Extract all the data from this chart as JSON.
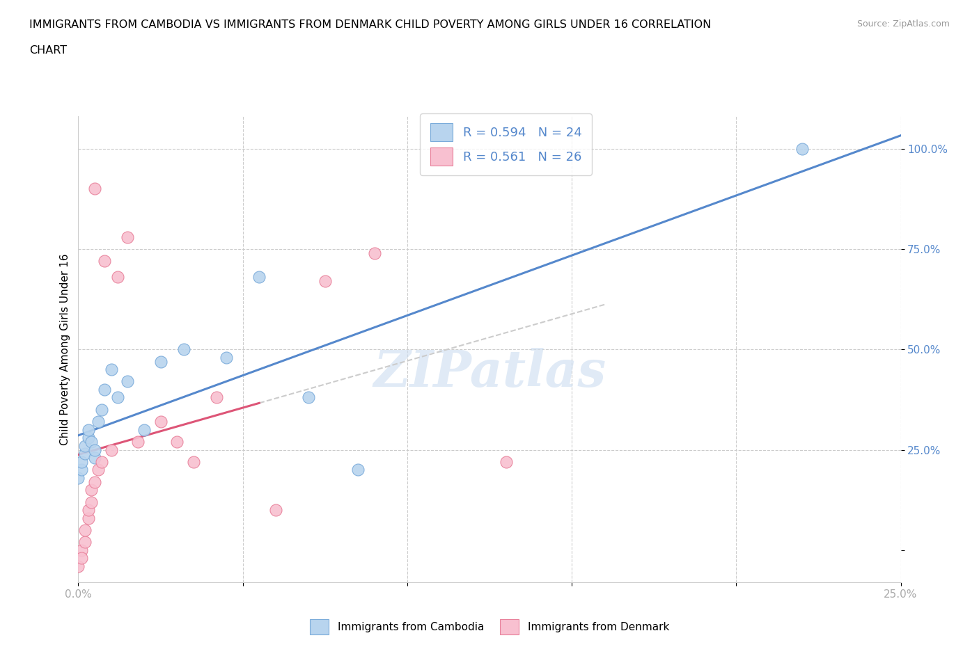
{
  "title_line1": "IMMIGRANTS FROM CAMBODIA VS IMMIGRANTS FROM DENMARK CHILD POVERTY AMONG GIRLS UNDER 16 CORRELATION",
  "title_line2": "CHART",
  "source": "Source: ZipAtlas.com",
  "ylabel": "Child Poverty Among Girls Under 16",
  "xlim": [
    0.0,
    0.25
  ],
  "ylim": [
    -0.08,
    1.08
  ],
  "x_ticks": [
    0.0,
    0.05,
    0.1,
    0.15,
    0.2,
    0.25
  ],
  "x_tick_labels": [
    "0.0%",
    "",
    "",
    "",
    "",
    "25.0%"
  ],
  "y_ticks": [
    0.0,
    0.25,
    0.5,
    0.75,
    1.0
  ],
  "y_tick_labels": [
    "",
    "25.0%",
    "50.0%",
    "75.0%",
    "100.0%"
  ],
  "cambodia_fill": "#b8d4ee",
  "cambodia_edge": "#7aabda",
  "denmark_fill": "#f8c0d0",
  "denmark_edge": "#e8809a",
  "trendline_cambodia": "#5588cc",
  "trendline_denmark": "#dd5577",
  "trendline_denmark_dashed": "#ddaaaa",
  "watermark": "ZIPatlas",
  "legend_R_cambodia": "R = 0.594",
  "legend_N_cambodia": "N = 24",
  "legend_R_denmark": "R = 0.561",
  "legend_N_denmark": "N = 26",
  "camb_x": [
    0.0,
    0.001,
    0.001,
    0.002,
    0.002,
    0.003,
    0.003,
    0.004,
    0.005,
    0.005,
    0.006,
    0.007,
    0.008,
    0.01,
    0.012,
    0.015,
    0.02,
    0.025,
    0.032,
    0.045,
    0.055,
    0.07,
    0.085,
    0.22
  ],
  "camb_y": [
    0.18,
    0.2,
    0.22,
    0.24,
    0.26,
    0.28,
    0.3,
    0.27,
    0.23,
    0.25,
    0.32,
    0.35,
    0.4,
    0.45,
    0.38,
    0.42,
    0.3,
    0.47,
    0.5,
    0.48,
    0.68,
    0.38,
    0.2,
    1.0
  ],
  "den_x": [
    0.0,
    0.001,
    0.001,
    0.002,
    0.002,
    0.003,
    0.003,
    0.004,
    0.004,
    0.005,
    0.005,
    0.006,
    0.007,
    0.008,
    0.01,
    0.012,
    0.015,
    0.018,
    0.025,
    0.03,
    0.035,
    0.042,
    0.06,
    0.075,
    0.09,
    0.13
  ],
  "den_y": [
    -0.04,
    0.0,
    -0.02,
    0.02,
    0.05,
    0.08,
    0.1,
    0.12,
    0.15,
    0.17,
    0.9,
    0.2,
    0.22,
    0.72,
    0.25,
    0.68,
    0.78,
    0.27,
    0.32,
    0.27,
    0.22,
    0.38,
    0.1,
    0.67,
    0.74,
    0.22
  ],
  "grid_color": "#cccccc",
  "spine_color": "#cccccc",
  "tick_color": "#aaaaaa",
  "y_label_color": "#5588cc",
  "legend_label_color": "#5588cc"
}
